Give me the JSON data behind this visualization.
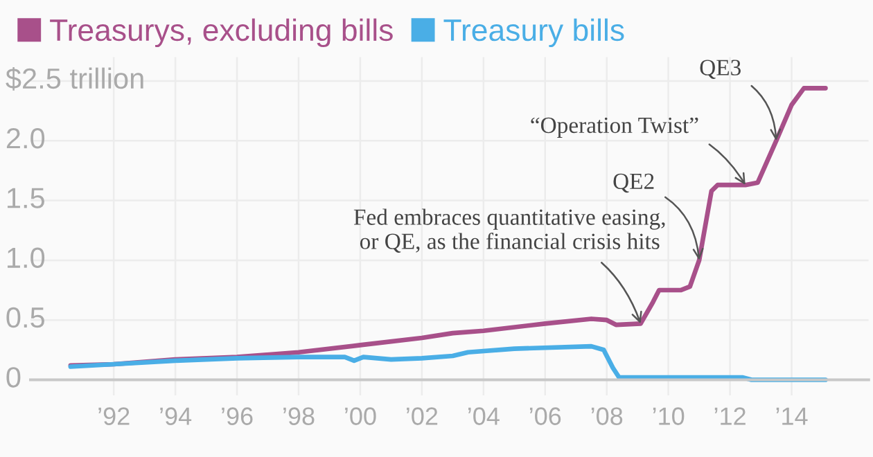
{
  "chart_data": {
    "type": "line",
    "series": [
      {
        "name": "Treasurys, excluding bills",
        "color": "#a8508a",
        "x": [
          1990.6,
          1992,
          1994,
          1996,
          1998,
          2000,
          2002,
          2003,
          2004,
          2006,
          2007.5,
          2008,
          2008.3,
          2009.1,
          2009.5,
          2009.7,
          2010.4,
          2010.7,
          2011,
          2011.4,
          2011.6,
          2012.5,
          2012.9,
          2013.5,
          2014,
          2014.4,
          2015.1
        ],
        "values": [
          0.12,
          0.13,
          0.17,
          0.19,
          0.23,
          0.29,
          0.35,
          0.39,
          0.41,
          0.47,
          0.51,
          0.5,
          0.46,
          0.47,
          0.65,
          0.75,
          0.75,
          0.78,
          1.0,
          1.58,
          1.63,
          1.63,
          1.65,
          2.0,
          2.3,
          2.44,
          2.44
        ]
      },
      {
        "name": "Treasury bills",
        "color": "#4aaee6",
        "x": [
          1990.6,
          1992,
          1994,
          1996,
          1998,
          1999.5,
          1999.8,
          2000.1,
          2001,
          2002,
          2003,
          2003.5,
          2005,
          2007.5,
          2007.9,
          2008.2,
          2008.4,
          2012.4,
          2012.7,
          2015.1
        ],
        "values": [
          0.11,
          0.13,
          0.16,
          0.18,
          0.19,
          0.19,
          0.16,
          0.19,
          0.17,
          0.18,
          0.2,
          0.23,
          0.26,
          0.28,
          0.25,
          0.1,
          0.02,
          0.02,
          0.0,
          0.0
        ]
      }
    ],
    "xlim": [
      1989.3,
      2016.5
    ],
    "xticks": [
      {
        "value": 1992,
        "label": "’92"
      },
      {
        "value": 1994,
        "label": "’94"
      },
      {
        "value": 1996,
        "label": "’96"
      },
      {
        "value": 1998,
        "label": "’98"
      },
      {
        "value": 2000,
        "label": "’00"
      },
      {
        "value": 2002,
        "label": "’02"
      },
      {
        "value": 2004,
        "label": "’04"
      },
      {
        "value": 2006,
        "label": "’06"
      },
      {
        "value": 2008,
        "label": "’08"
      },
      {
        "value": 2010,
        "label": "’10"
      },
      {
        "value": 2012,
        "label": "’12"
      },
      {
        "value": 2014,
        "label": "’14"
      }
    ],
    "ylim": [
      -0.13,
      2.7
    ],
    "yticks": [
      0,
      0.5,
      {
        "value": 1,
        "label": "1.0"
      },
      1.5,
      {
        "value": 2,
        "label": "2.0"
      },
      {
        "value": 2.5,
        "label": "$2.5 trillion"
      }
    ],
    "grid": true,
    "legend": "top left",
    "line_style": "solid",
    "marker": "none",
    "annotations": [
      {
        "text": "Fed embraces quantitative easing,\nor QE, as the financial crisis hits",
        "x": 2009.1,
        "y": 0.47
      },
      {
        "text": "QE2",
        "x": 2011,
        "y": 1.0
      },
      {
        "text": "“Operation Twist”",
        "x": 2012.5,
        "y": 1.63
      },
      {
        "text": "QE3",
        "x": 2013.5,
        "y": 2.0
      }
    ]
  }
}
